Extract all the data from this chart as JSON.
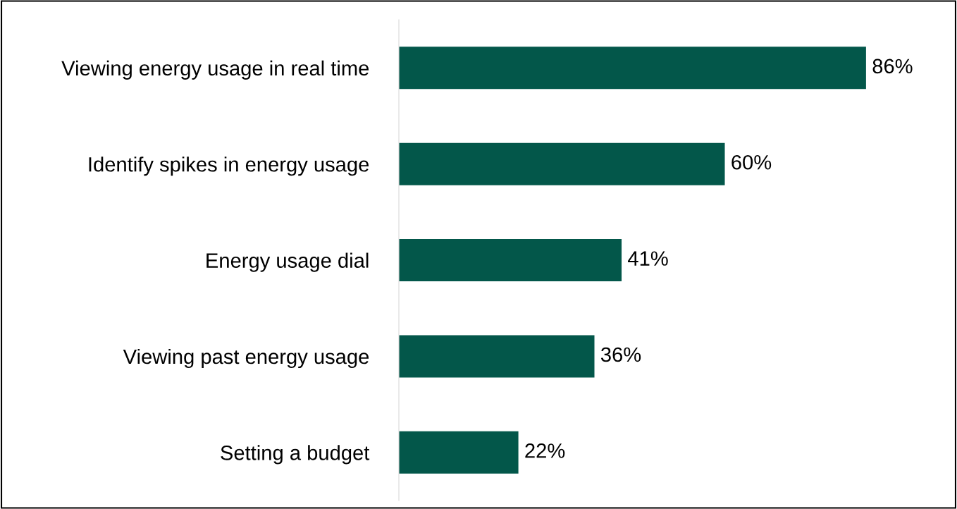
{
  "chart_data": {
    "type": "bar",
    "orientation": "horizontal",
    "categories": [
      "Viewing energy usage in real time",
      "Identify spikes in energy usage",
      "Energy usage dial",
      "Viewing past energy usage",
      "Setting a budget"
    ],
    "values": [
      86,
      60,
      41,
      36,
      22
    ],
    "value_labels": [
      "86%",
      "60%",
      "41%",
      "36%",
      "22%"
    ],
    "color": "#03574a",
    "tick_labels": "y",
    "grid": false,
    "legend": false
  }
}
